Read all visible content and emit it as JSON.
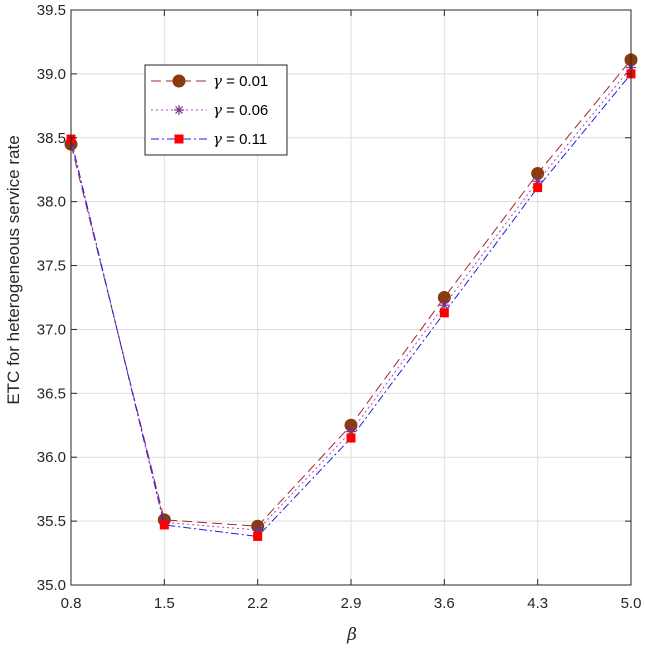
{
  "chart_data": {
    "type": "line",
    "x": [
      0.8,
      1.5,
      2.2,
      2.9,
      3.6,
      4.3,
      5.0
    ],
    "x_tick_labels": [
      "0.8",
      "1.5",
      "2.2",
      "2.9",
      "3.6",
      "4.3",
      "5.0"
    ],
    "y_ticks": [
      35.0,
      35.5,
      36.0,
      36.5,
      37.0,
      37.5,
      38.0,
      38.5,
      39.0,
      39.5
    ],
    "y_tick_labels": [
      "35.0",
      "35.5",
      "36.0",
      "36.5",
      "37.0",
      "37.5",
      "38.0",
      "38.5",
      "39.0",
      "39.5"
    ],
    "xlim": [
      0.8,
      5.0
    ],
    "ylim": [
      35.0,
      39.5
    ],
    "xlabel": "β",
    "ylabel": "ETC for heterogeneous service rate",
    "grid": true,
    "legend_position": "top-left",
    "series": [
      {
        "name_symbol": "γ",
        "name_value": " = 0.01",
        "values": [
          38.45,
          35.51,
          35.46,
          36.25,
          37.25,
          38.22,
          39.11
        ],
        "color": "#a0282d",
        "marker": "circle",
        "marker_color": "#8b3a0e",
        "dash": "10,5"
      },
      {
        "name_symbol": "γ",
        "name_value": " = 0.06",
        "values": [
          38.47,
          35.49,
          35.43,
          36.2,
          37.19,
          38.16,
          39.05
        ],
        "color": "#b040c0",
        "marker": "asterisk",
        "marker_color": "#7a2f8a",
        "dash": "2,3"
      },
      {
        "name_symbol": "γ",
        "name_value": " = 0.11",
        "values": [
          38.49,
          35.47,
          35.38,
          36.15,
          37.13,
          38.11,
          39.0
        ],
        "color": "#2020e0",
        "marker": "square",
        "marker_color": "#ff0000",
        "dash": "8,3,2,3"
      }
    ]
  }
}
